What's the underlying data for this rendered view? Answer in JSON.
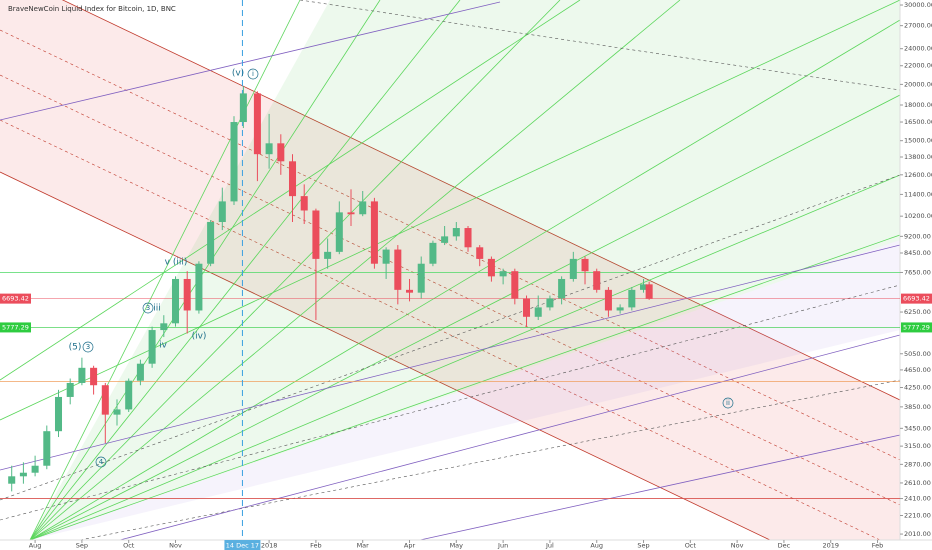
{
  "chart_data": {
    "type": "candlestick",
    "title": "BraveNewCoin Liquid Index for Bitcoin, 1D, BNC",
    "log_scale": true,
    "up_color": "#53b987",
    "down_color": "#eb4d5c",
    "x": [
      -0.5,
      -0.25,
      0,
      0.25,
      0.5,
      0.75,
      1,
      1.25,
      1.5,
      1.75,
      2,
      2.25,
      2.5,
      2.75,
      3,
      3.25,
      3.5,
      3.75,
      4,
      4.25,
      4.45,
      4.75,
      5,
      5.25,
      5.5,
      5.75,
      6,
      6.25,
      6.5,
      6.75,
      7,
      7.25,
      7.5,
      7.75,
      8,
      8.25,
      8.5,
      8.75,
      9,
      9.25,
      9.5,
      9.75,
      10,
      10.25,
      10.5,
      10.75,
      11,
      11.25,
      11.5,
      11.75,
      12,
      12.25,
      12.5,
      12.75,
      13,
      13.12
    ],
    "open": [
      2600,
      2700,
      2750,
      2850,
      3400,
      4050,
      4350,
      4700,
      4300,
      3700,
      3800,
      4400,
      4800,
      5700,
      5900,
      7400,
      6300,
      8000,
      9900,
      11000,
      16500,
      19100,
      14000,
      14800,
      13500,
      11300,
      10500,
      8200,
      8500,
      10400,
      10300,
      11000,
      8000,
      8600,
      7000,
      6900,
      8000,
      8900,
      9200,
      9600,
      8700,
      8200,
      7500,
      7700,
      6700,
      6100,
      6400,
      6700,
      7400,
      8200,
      7700,
      7000,
      6300,
      6400,
      7000,
      7200
    ],
    "high": [
      2850,
      2900,
      3000,
      3500,
      4200,
      4450,
      4950,
      4750,
      4350,
      4000,
      4450,
      4900,
      5800,
      6150,
      7500,
      7700,
      8100,
      10000,
      11800,
      17000,
      19800,
      19300,
      17200,
      15500,
      14000,
      12000,
      10600,
      9100,
      11000,
      11700,
      11600,
      11200,
      8700,
      8800,
      7400,
      8300,
      9000,
      9700,
      9900,
      9700,
      8800,
      8300,
      7800,
      7800,
      6800,
      6800,
      6800,
      7500,
      8500,
      8300,
      7800,
      7100,
      6500,
      7100,
      7400,
      7300
    ],
    "low": [
      2500,
      2600,
      2700,
      2800,
      3300,
      3900,
      4300,
      4100,
      3200,
      3500,
      3750,
      4300,
      4700,
      5500,
      5800,
      5600,
      6200,
      7900,
      9500,
      10800,
      16000,
      12200,
      13000,
      12600,
      9900,
      9800,
      6000,
      7800,
      8400,
      9700,
      10200,
      7800,
      7400,
      6500,
      6600,
      6700,
      7900,
      8800,
      9000,
      8500,
      7900,
      7300,
      7200,
      6500,
      5800,
      6000,
      6300,
      6500,
      7300,
      7200,
      6900,
      6100,
      6200,
      6300,
      6900,
      6650
    ],
    "close": [
      2700,
      2750,
      2850,
      3400,
      4050,
      4350,
      4700,
      4300,
      3700,
      3800,
      4400,
      4800,
      5700,
      5900,
      7400,
      6300,
      8000,
      9900,
      11000,
      16500,
      19100,
      14000,
      14800,
      13500,
      11300,
      10500,
      8200,
      8500,
      10400,
      10300,
      11000,
      8000,
      8600,
      7000,
      6900,
      8000,
      8900,
      9200,
      9600,
      8700,
      8200,
      7500,
      7700,
      6700,
      6100,
      6400,
      6700,
      7400,
      8200,
      7700,
      7000,
      6300,
      6400,
      7000,
      7200,
      6693.42
    ],
    "xlim": [
      -0.75,
      18.48
    ],
    "xticks": [
      {
        "value": 0,
        "label": "Aug"
      },
      {
        "value": 1,
        "label": "Sep"
      },
      {
        "value": 2,
        "label": "Oct"
      },
      {
        "value": 3,
        "label": "Nov"
      },
      {
        "value": 5,
        "label": "2018"
      },
      {
        "value": 6,
        "label": "Feb"
      },
      {
        "value": 7,
        "label": "Mar"
      },
      {
        "value": 8,
        "label": "Apr"
      },
      {
        "value": 9,
        "label": "May"
      },
      {
        "value": 10,
        "label": "Jun"
      },
      {
        "value": 11,
        "label": "Jul"
      },
      {
        "value": 12,
        "label": "Aug"
      },
      {
        "value": 13,
        "label": "Sep"
      },
      {
        "value": 14,
        "label": "Oct"
      },
      {
        "value": 15,
        "label": "Nov"
      },
      {
        "value": 16,
        "label": "Dec"
      },
      {
        "value": 17,
        "label": "2019"
      },
      {
        "value": 18,
        "label": "Feb"
      }
    ],
    "crosshair": {
      "value": 4.43,
      "label": "14 Dec 17"
    },
    "ylim": [
      1950,
      30780
    ],
    "yticks": [
      {
        "value": 30000,
        "label": "30000.00"
      },
      {
        "value": 27000,
        "label": "27000.00"
      },
      {
        "value": 24000,
        "label": "24000.00"
      },
      {
        "value": 22000,
        "label": "22000.00"
      },
      {
        "value": 20000,
        "label": "20000.00"
      },
      {
        "value": 18000,
        "label": "18000.00"
      },
      {
        "value": 16500,
        "label": "16500.00"
      },
      {
        "value": 15000,
        "label": "15000.00"
      },
      {
        "value": 13800,
        "label": "13800.00"
      },
      {
        "value": 12600,
        "label": "12600.00"
      },
      {
        "value": 11400,
        "label": "11400.00"
      },
      {
        "value": 10200,
        "label": "10200.00"
      },
      {
        "value": 9200,
        "label": "9200.00"
      },
      {
        "value": 8450,
        "label": "8450.00"
      },
      {
        "value": 7650,
        "label": "7650.00"
      },
      {
        "value": 6250,
        "label": "6250.00"
      },
      {
        "value": 5050,
        "label": "5050.00"
      },
      {
        "value": 4650,
        "label": "4650.00"
      },
      {
        "value": 4250,
        "label": "4250.00"
      },
      {
        "value": 3850,
        "label": "3850.00"
      },
      {
        "value": 3450,
        "label": "3450.00"
      },
      {
        "value": 3150,
        "label": "3150.00"
      },
      {
        "value": 2870,
        "label": "2870.00"
      },
      {
        "value": 2610,
        "label": "2610.00"
      },
      {
        "value": 2410,
        "label": "2410.00"
      },
      {
        "value": 2210,
        "label": "2210.00"
      },
      {
        "value": 2010,
        "label": "2010.00"
      }
    ],
    "price_labels": [
      {
        "value": 6693.42,
        "label": "6693.42",
        "color": "#eb4d5c"
      },
      {
        "value": 5777.29,
        "label": "5777.29",
        "color": "#2ecc40"
      }
    ],
    "levels": [
      {
        "value": 7650,
        "color": "#4cd964"
      },
      {
        "value": 4380,
        "color": "#f0a060"
      },
      {
        "value": 2410,
        "color": "#d9534f"
      }
    ],
    "annotations": [
      "(v)",
      "i",
      "v (iii)",
      "3",
      "iii",
      "iv",
      "(iv)",
      "(5)",
      "3",
      "4",
      "ii"
    ]
  }
}
